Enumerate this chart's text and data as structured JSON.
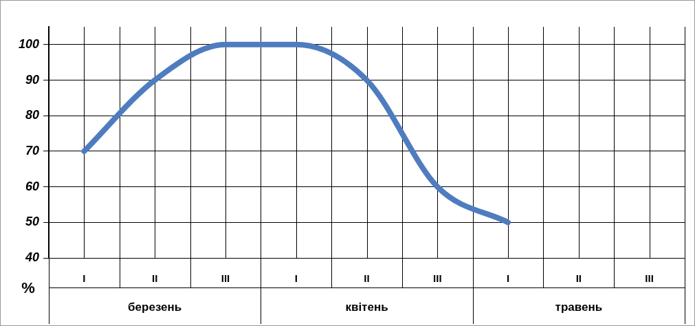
{
  "chart_data": {
    "type": "line",
    "ylabel": "%",
    "categories": [
      "I",
      "II",
      "III",
      "I",
      "II",
      "III",
      "I",
      "II",
      "III"
    ],
    "series": [
      {
        "color": "#4f7cbf",
        "values": [
          70,
          90,
          100,
          100,
          90,
          60,
          50,
          null,
          null
        ]
      }
    ],
    "ylim": [
      40,
      105
    ],
    "yticks": [
      40,
      50,
      60,
      70,
      80,
      90,
      100
    ],
    "grid": true,
    "legend": false,
    "marker": "none",
    "line_style": "solid",
    "annotations": [
      "березень",
      "квітень",
      "травень"
    ]
  }
}
